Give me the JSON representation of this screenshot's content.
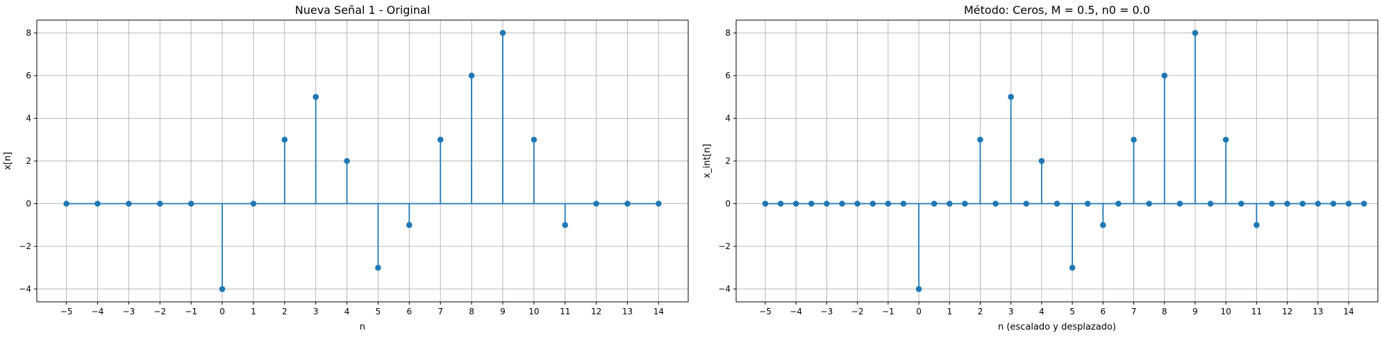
{
  "colors": {
    "stem": "#1f77b4",
    "grid": "#b0b0b0",
    "axis": "#000000"
  },
  "chart_data": [
    {
      "type": "stem",
      "title": "Nueva Señal 1 - Original",
      "xlabel": "n",
      "ylabel": "x[n]",
      "xlim": [
        -5.95,
        14.95
      ],
      "ylim": [
        -4.6,
        8.6
      ],
      "xticks": [
        -5,
        -4,
        -3,
        -2,
        -1,
        0,
        1,
        2,
        3,
        4,
        5,
        6,
        7,
        8,
        9,
        10,
        11,
        12,
        13,
        14
      ],
      "yticks": [
        -4,
        -2,
        0,
        2,
        4,
        6,
        8
      ],
      "grid": true,
      "x": [
        -5,
        -4,
        -3,
        -2,
        -1,
        0,
        1,
        2,
        3,
        4,
        5,
        6,
        7,
        8,
        9,
        10,
        11,
        12,
        13,
        14
      ],
      "y": [
        0,
        0,
        0,
        0,
        0,
        -4,
        0,
        3,
        5,
        2,
        -3,
        -1,
        3,
        6,
        8,
        3,
        -1,
        0,
        0,
        0
      ]
    },
    {
      "type": "stem",
      "title": "Método: Ceros, M = 0.5, n0 = 0.0",
      "xlabel": "n (escalado y desplazado)",
      "ylabel": "x_int[n]",
      "xlim": [
        -5.95,
        14.95
      ],
      "ylim": [
        -4.6,
        8.6
      ],
      "xticks": [
        -5,
        -4,
        -3,
        -2,
        -1,
        0,
        1,
        2,
        3,
        4,
        5,
        6,
        7,
        8,
        9,
        10,
        11,
        12,
        13,
        14
      ],
      "yticks": [
        -4,
        -2,
        0,
        2,
        4,
        6,
        8
      ],
      "grid": true,
      "x": [
        -5,
        -4.5,
        -4,
        -3.5,
        -3,
        -2.5,
        -2,
        -1.5,
        -1,
        -0.5,
        0,
        0.5,
        1,
        1.5,
        2,
        2.5,
        3,
        3.5,
        4,
        4.5,
        5,
        5.5,
        6,
        6.5,
        7,
        7.5,
        8,
        8.5,
        9,
        9.5,
        10,
        10.5,
        11,
        11.5,
        12,
        12.5,
        13,
        13.5,
        14,
        14.5
      ],
      "y": [
        0,
        0,
        0,
        0,
        0,
        0,
        0,
        0,
        0,
        0,
        -4,
        0,
        0,
        0,
        3,
        0,
        5,
        0,
        2,
        0,
        -3,
        0,
        -1,
        0,
        3,
        0,
        6,
        0,
        8,
        0,
        3,
        0,
        -1,
        0,
        0,
        0,
        0,
        0,
        0,
        0
      ]
    }
  ]
}
